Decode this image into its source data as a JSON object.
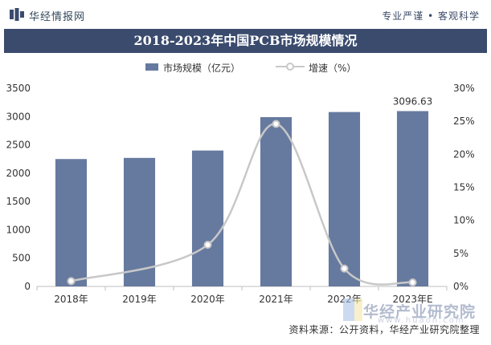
{
  "header": {
    "brand": "华经情报网",
    "slogan": "专业严谨 • 客观科学"
  },
  "colors": {
    "title_bg": "#3b4b6e",
    "bar": "#66799e",
    "line": "#c8c8c8",
    "marker_fill": "#ffffff"
  },
  "chart_data": {
    "type": "bar",
    "title": "2018-2023年中国PCB市场规模情况",
    "categories": [
      "2018年",
      "2019年",
      "2020年",
      "2021年",
      "2022年",
      "2023年E"
    ],
    "series": [
      {
        "name": "市场规模（亿元）",
        "type": "bar",
        "axis": "left",
        "values": [
          2250,
          2270,
          2400,
          2990,
          3080,
          3096.63
        ]
      },
      {
        "name": "增速（%）",
        "type": "line",
        "axis": "right",
        "values": [
          0.8,
          null,
          6.3,
          24.6,
          2.7,
          0.6
        ]
      }
    ],
    "data_labels": [
      {
        "category": "2023年E",
        "text": "3096.63"
      }
    ],
    "y_left": {
      "min": 0,
      "max": 3500,
      "ticks": [
        "0",
        "500",
        "1000",
        "1500",
        "2000",
        "2500",
        "3000",
        "3500"
      ]
    },
    "y_right": {
      "min": 0,
      "max": 30,
      "ticks": [
        "0%",
        "5%",
        "10%",
        "15%",
        "20%",
        "25%",
        "30%"
      ]
    },
    "grid": false,
    "legend_position": "top-center"
  },
  "watermark": {
    "brand": "华经产业研究院",
    "site": "www.huaon.com"
  },
  "footer": {
    "source": "资料来源：公开资料，华经产业研究院整理"
  }
}
